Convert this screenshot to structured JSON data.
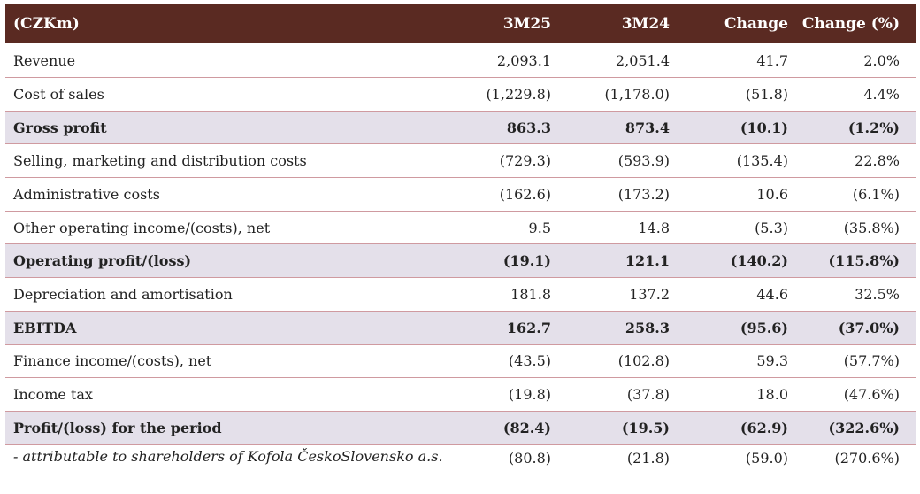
{
  "header": {
    "label": "(CZKm)",
    "col1": "3M25",
    "col2": "3M24",
    "col3": "Change",
    "col4": "Change (%)"
  },
  "rows": [
    {
      "label": "Revenue",
      "v1": "2,093.1",
      "v2": "2,051.4",
      "v3": "41.7",
      "v4": "2.0%",
      "bold": false
    },
    {
      "label": "Cost of sales",
      "v1": "(1,229.8)",
      "v2": "(1,178.0)",
      "v3": "(51.8)",
      "v4": "4.4%",
      "bold": false
    },
    {
      "label": "Gross profit",
      "v1": "863.3",
      "v2": "873.4",
      "v3": "(10.1)",
      "v4": "(1.2%)",
      "bold": true
    },
    {
      "label": "Selling, marketing and distribution costs",
      "v1": "(729.3)",
      "v2": "(593.9)",
      "v3": "(135.4)",
      "v4": "22.8%",
      "bold": false
    },
    {
      "label": "Administrative costs",
      "v1": "(162.6)",
      "v2": "(173.2)",
      "v3": "10.6",
      "v4": "(6.1%)",
      "bold": false
    },
    {
      "label": "Other operating income/(costs), net",
      "v1": "9.5",
      "v2": "14.8",
      "v3": "(5.3)",
      "v4": "(35.8%)",
      "bold": false
    },
    {
      "label": "Operating profit/(loss)",
      "v1": "(19.1)",
      "v2": "121.1",
      "v3": "(140.2)",
      "v4": "(115.8%)",
      "bold": true
    },
    {
      "label": "Depreciation and amortisation",
      "v1": "181.8",
      "v2": "137.2",
      "v3": "44.6",
      "v4": "32.5%",
      "bold": false
    },
    {
      "label": "EBITDA",
      "v1": "162.7",
      "v2": "258.3",
      "v3": "(95.6)",
      "v4": "(37.0%)",
      "bold": true
    },
    {
      "label": "Finance income/(costs), net",
      "v1": "(43.5)",
      "v2": "(102.8)",
      "v3": "59.3",
      "v4": "(57.7%)",
      "bold": false
    },
    {
      "label": "Income tax",
      "v1": "(19.8)",
      "v2": "(37.8)",
      "v3": "18.0",
      "v4": "(47.6%)",
      "bold": false
    },
    {
      "label": "Profit/(loss) for the period",
      "v1": "(82.4)",
      "v2": "(19.5)",
      "v3": "(62.9)",
      "v4": "(322.6%)",
      "bold": true
    },
    {
      "label": "- attributable to shareholders of Kofola ČeskoSlovensko a.s.",
      "v1": "(80.8)",
      "v2": "(21.8)",
      "v3": "(59.0)",
      "v4": "(270.6%)",
      "bold": false
    }
  ],
  "colors": {
    "header_bg": "#5a2a22",
    "highlight_bg": "#e4e0ea",
    "row_border": "#cf9aa0"
  }
}
